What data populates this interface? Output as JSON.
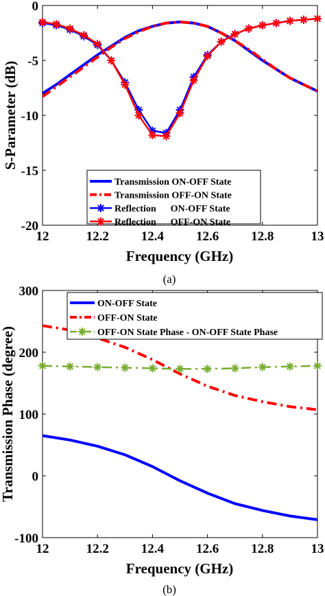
{
  "chart_data": [
    {
      "type": "line",
      "caption": "(a)",
      "xlabel": "Frequency (GHz)",
      "ylabel": "S-Parameter (dB)",
      "xlim": [
        12,
        13
      ],
      "ylim": [
        -20,
        0
      ],
      "xticks": [
        "12",
        "12.2",
        "12.4",
        "12.6",
        "12.8",
        "13"
      ],
      "yticks": [
        "0",
        "-5",
        "-10",
        "-15",
        "-20"
      ],
      "grid": false,
      "legend_position": "bottom-center",
      "x": [
        12.0,
        12.05,
        12.1,
        12.15,
        12.2,
        12.25,
        12.3,
        12.35,
        12.4,
        12.45,
        12.5,
        12.55,
        12.6,
        12.65,
        12.7,
        12.75,
        12.8,
        12.85,
        12.9,
        12.95,
        13.0
      ],
      "series": [
        {
          "name": "Transmission ON-OFF State",
          "color": "#0000ff",
          "style": "solid",
          "marker": "none",
          "values": [
            -8.0,
            -7.2,
            -6.3,
            -5.4,
            -4.5,
            -3.7,
            -2.9,
            -2.3,
            -1.9,
            -1.6,
            -1.5,
            -1.6,
            -1.9,
            -2.5,
            -3.2,
            -4.1,
            -5.0,
            -5.8,
            -6.6,
            -7.2,
            -7.8
          ]
        },
        {
          "name": "Transmission OFF-ON State",
          "color": "#ff0000",
          "style": "dashed",
          "marker": "none",
          "values": [
            -8.3,
            -7.4,
            -6.5,
            -5.6,
            -4.7,
            -3.8,
            -3.0,
            -2.4,
            -1.9,
            -1.6,
            -1.5,
            -1.6,
            -1.9,
            -2.5,
            -3.2,
            -4.0,
            -4.9,
            -5.8,
            -6.6,
            -7.2,
            -7.8
          ]
        },
        {
          "name": "Reflection      ON-OFF State",
          "color": "#0000ff",
          "style": "solid",
          "marker": "star",
          "values": [
            -1.6,
            -1.8,
            -2.2,
            -2.8,
            -3.6,
            -5.0,
            -7.0,
            -9.5,
            -11.4,
            -11.6,
            -9.5,
            -6.5,
            -4.5,
            -3.3,
            -2.6,
            -2.1,
            -1.8,
            -1.6,
            -1.4,
            -1.3,
            -1.2
          ]
        },
        {
          "name": "Reflection      OFF-ON State",
          "color": "#ff0000",
          "style": "solid",
          "marker": "star",
          "values": [
            -1.5,
            -1.7,
            -2.1,
            -2.7,
            -3.5,
            -5.0,
            -7.2,
            -10.0,
            -11.8,
            -11.9,
            -9.8,
            -6.8,
            -4.6,
            -3.3,
            -2.6,
            -2.1,
            -1.8,
            -1.6,
            -1.4,
            -1.3,
            -1.2
          ]
        }
      ]
    },
    {
      "type": "line",
      "caption": "(b)",
      "xlabel": "Frequency (GHz)",
      "ylabel": "Transmission Phase (degree)",
      "xlim": [
        12,
        13
      ],
      "ylim": [
        -100,
        300
      ],
      "xticks": [
        "12",
        "12.2",
        "12.4",
        "12.6",
        "12.8",
        "13"
      ],
      "yticks": [
        "300",
        "200",
        "100",
        "0",
        "-100"
      ],
      "grid": false,
      "legend_position": "top",
      "x": [
        12.0,
        12.1,
        12.2,
        12.3,
        12.4,
        12.5,
        12.6,
        12.7,
        12.8,
        12.9,
        13.0
      ],
      "series": [
        {
          "name": "ON-OFF State",
          "color": "#0000ff",
          "style": "solid",
          "marker": "none",
          "values": [
            65,
            58,
            48,
            34,
            15,
            -8,
            -28,
            -45,
            -56,
            -65,
            -71
          ]
        },
        {
          "name": "OFF-ON State",
          "color": "#ff0000",
          "style": "dashed",
          "marker": "none",
          "values": [
            243,
            236,
            223,
            208,
            188,
            165,
            145,
            130,
            120,
            112,
            107
          ]
        },
        {
          "name": "OFF-ON State Phase - ON-OFF State Phase",
          "color": "#77ac30",
          "style": "dashed",
          "marker": "star",
          "values": [
            178,
            177,
            176,
            175,
            174,
            173,
            173,
            174,
            176,
            177,
            178
          ]
        }
      ]
    }
  ]
}
